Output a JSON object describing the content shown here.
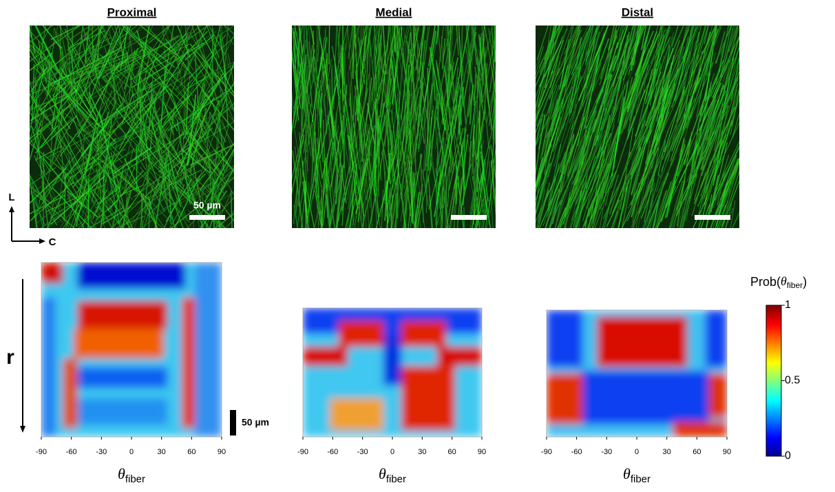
{
  "panels": [
    {
      "title": "Proximal"
    },
    {
      "title": "Medial"
    },
    {
      "title": "Distal"
    }
  ],
  "image_scale_label": "50 µm",
  "orientation": {
    "longitudinal": "L",
    "circumferential": "C",
    "radial": "r"
  },
  "heatmap_xlim": [
    -90,
    90
  ],
  "heatmap_xticks": [
    -90,
    -60,
    -30,
    0,
    30,
    60,
    90
  ],
  "x_label": {
    "symbol": "θ",
    "sub": "fiber"
  },
  "radial_scale_label": "50 µm",
  "colorbar": {
    "label_start": "Prob(",
    "symbol": "θ",
    "sub": "fiber",
    "label_end": ")",
    "lim": [
      0,
      1
    ],
    "ticks": [
      0,
      0.5,
      1
    ]
  }
}
